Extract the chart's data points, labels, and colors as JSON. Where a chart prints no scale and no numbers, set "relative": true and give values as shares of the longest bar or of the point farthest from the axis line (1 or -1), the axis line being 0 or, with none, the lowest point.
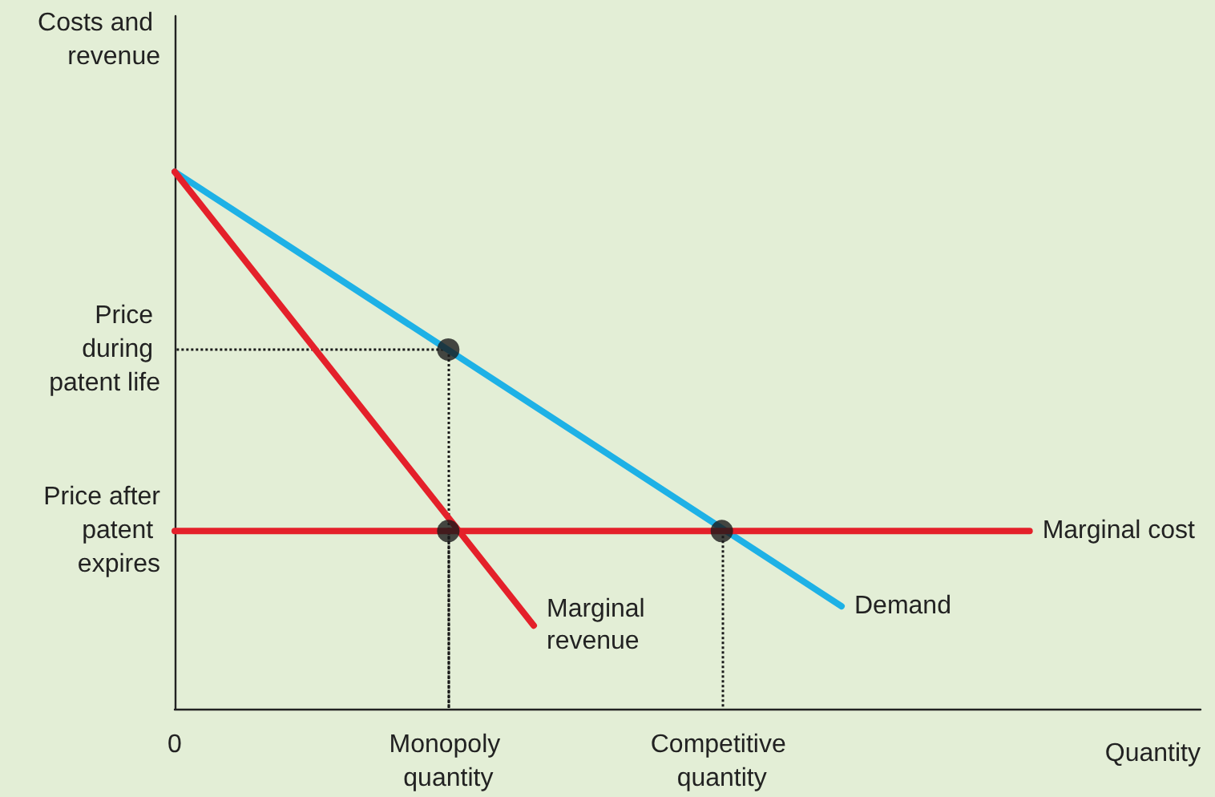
{
  "chart_data": {
    "type": "line",
    "relative": true,
    "xlabel": "Quantity",
    "ylabel": "Costs and revenue",
    "tick_labels": "x",
    "grid": false,
    "legend": false,
    "marker": "none",
    "line_style": "solid",
    "categories": [
      "0",
      null,
      null,
      null,
      null,
      null,
      null,
      null,
      null,
      null,
      null,
      null,
      null,
      null,
      null,
      null,
      "Monopoly quantity",
      null,
      null,
      null,
      null,
      null,
      null,
      null,
      null,
      null,
      null,
      null,
      null,
      null,
      null,
      null,
      "Competitive quantity",
      null,
      null,
      null,
      null,
      null,
      null,
      null,
      null,
      null,
      null,
      null,
      null,
      null,
      null,
      null,
      null,
      null,
      null,
      null,
      null,
      null,
      null,
      null,
      null,
      null,
      null,
      null,
      null
    ],
    "series": [
      {
        "name": "Demand",
        "color": "#1eb1e6",
        "values": [
          1,
          null,
          null,
          null,
          null,
          null,
          null,
          null,
          null,
          null,
          null,
          null,
          null,
          null,
          null,
          null,
          null,
          null,
          null,
          null,
          null,
          null,
          null,
          null,
          null,
          null,
          null,
          null,
          null,
          null,
          null,
          null,
          null,
          null,
          null,
          null,
          null,
          null,
          null,
          0.191,
          null,
          null,
          null,
          null,
          null,
          null,
          null,
          null,
          null,
          null,
          null,
          null,
          null,
          null,
          null,
          null,
          null,
          null,
          null,
          null,
          null
        ]
      },
      {
        "name": "Marginal revenue",
        "color": "#e4202a",
        "values": [
          1,
          null,
          null,
          null,
          null,
          null,
          null,
          null,
          null,
          null,
          null,
          null,
          null,
          null,
          null,
          null,
          null,
          null,
          null,
          null,
          null,
          0.155,
          null,
          null,
          null,
          null,
          null,
          null,
          null,
          null,
          null,
          null,
          null,
          null,
          null,
          null,
          null,
          null,
          null,
          null,
          null,
          null,
          null,
          null,
          null,
          null,
          null,
          null,
          null,
          null,
          null,
          null,
          null,
          null,
          null,
          null,
          null,
          null,
          null,
          null,
          null
        ]
      },
      {
        "name": "Marginal cost",
        "color": "#e4202a",
        "values": [
          0.331,
          null,
          null,
          null,
          null,
          null,
          null,
          null,
          null,
          null,
          null,
          null,
          null,
          null,
          null,
          null,
          null,
          null,
          null,
          null,
          null,
          null,
          null,
          null,
          null,
          null,
          null,
          null,
          null,
          null,
          null,
          null,
          null,
          null,
          null,
          null,
          null,
          null,
          null,
          null,
          null,
          null,
          null,
          null,
          null,
          null,
          null,
          null,
          null,
          null,
          0.331,
          null,
          null,
          null,
          null,
          null,
          null,
          null,
          null,
          null,
          null
        ]
      },
      {
        "type": "scatter",
        "marker": "circle",
        "line_style": "dotted",
        "color": "#1a1a1a",
        "x": [
          "Monopoly quantity",
          "Monopoly quantity",
          "Competitive quantity"
        ],
        "values": [
          0.669,
          0.331,
          0.331
        ]
      }
    ],
    "annotations": [
      "Price during patent life",
      "Price after patent expires"
    ]
  }
}
